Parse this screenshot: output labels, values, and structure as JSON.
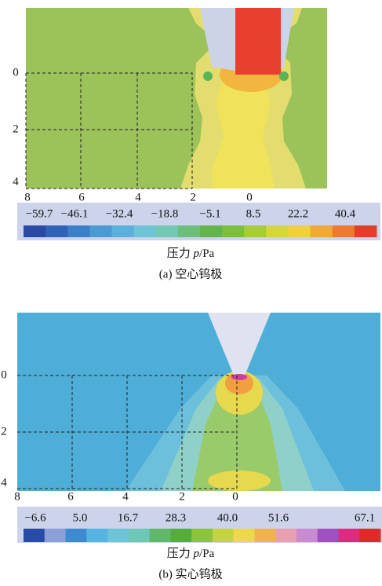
{
  "panels": [
    {
      "y_ticks": [
        "0",
        "2",
        "4"
      ],
      "x_ticks": [
        "8",
        "6",
        "4",
        "2",
        "0"
      ],
      "colorbar_labels": [
        "−59.7",
        "−46.1",
        "−32.4",
        "−18.8",
        "−5.1",
        "8.5",
        "22.2",
        "40.4"
      ],
      "axis_label": {
        "name": "压力 ",
        "symbol": "p",
        "unit": "/Pa"
      },
      "caption": "(a) 空心钨极"
    },
    {
      "y_ticks": [
        "0",
        "2",
        "4"
      ],
      "x_ticks": [
        "8",
        "6",
        "4",
        "2",
        "0"
      ],
      "colorbar_labels": [
        "−6.6",
        "5.0",
        "16.7",
        "28.3",
        "40.0",
        "51.6",
        "67.1"
      ],
      "axis_label": {
        "name": "压力 ",
        "symbol": "p",
        "unit": "/Pa"
      },
      "caption": "(b) 实心钨极"
    }
  ]
}
